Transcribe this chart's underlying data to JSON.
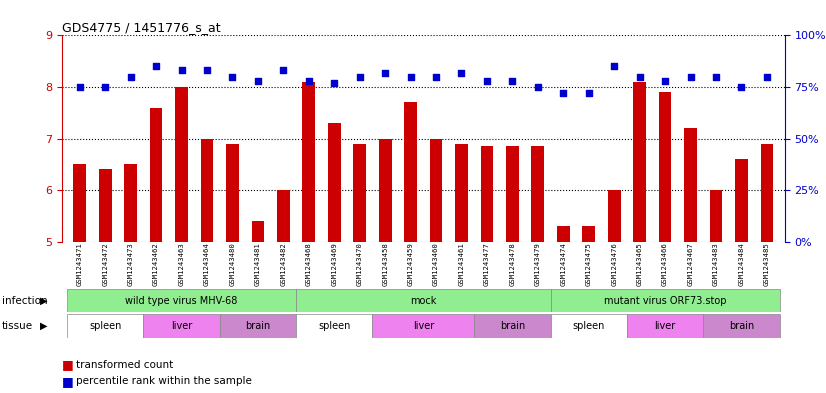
{
  "title": "GDS4775 / 1451776_s_at",
  "samples": [
    "GSM1243471",
    "GSM1243472",
    "GSM1243473",
    "GSM1243462",
    "GSM1243463",
    "GSM1243464",
    "GSM1243480",
    "GSM1243481",
    "GSM1243482",
    "GSM1243468",
    "GSM1243469",
    "GSM1243470",
    "GSM1243458",
    "GSM1243459",
    "GSM1243460",
    "GSM1243461",
    "GSM1243477",
    "GSM1243478",
    "GSM1243479",
    "GSM1243474",
    "GSM1243475",
    "GSM1243476",
    "GSM1243465",
    "GSM1243466",
    "GSM1243467",
    "GSM1243483",
    "GSM1243484",
    "GSM1243485"
  ],
  "bar_values": [
    6.5,
    6.4,
    6.5,
    7.6,
    8.0,
    7.0,
    6.9,
    5.4,
    6.0,
    8.1,
    7.3,
    6.9,
    7.0,
    7.7,
    7.0,
    6.9,
    6.85,
    6.85,
    6.85,
    5.3,
    5.3,
    6.0,
    8.1,
    7.9,
    7.2,
    6.0,
    6.6,
    6.9
  ],
  "dot_values": [
    75,
    75,
    80,
    85,
    83,
    83,
    80,
    78,
    83,
    78,
    77,
    80,
    82,
    80,
    80,
    82,
    78,
    78,
    75,
    72,
    72,
    85,
    80,
    78,
    80,
    80,
    75,
    80
  ],
  "ylim_left": [
    5,
    9
  ],
  "ylim_right": [
    0,
    100
  ],
  "yticks_left": [
    5,
    6,
    7,
    8,
    9
  ],
  "yticks_right": [
    0,
    25,
    50,
    75,
    100
  ],
  "bar_color": "#cc0000",
  "dot_color": "#0000cc",
  "bar_width": 0.5,
  "infection_groups": [
    {
      "label": "wild type virus MHV-68",
      "start": 0,
      "end": 8
    },
    {
      "label": "mock",
      "start": 9,
      "end": 18
    },
    {
      "label": "mutant virus ORF73.stop",
      "start": 19,
      "end": 27
    }
  ],
  "tissue_groups": [
    {
      "label": "spleen",
      "start": 0,
      "end": 2,
      "color": "#ffffff"
    },
    {
      "label": "liver",
      "start": 3,
      "end": 5,
      "color": "#ee82ee"
    },
    {
      "label": "brain",
      "start": 6,
      "end": 8,
      "color": "#cc88cc"
    },
    {
      "label": "spleen",
      "start": 9,
      "end": 11,
      "color": "#ffffff"
    },
    {
      "label": "liver",
      "start": 12,
      "end": 15,
      "color": "#ee82ee"
    },
    {
      "label": "brain",
      "start": 16,
      "end": 18,
      "color": "#cc88cc"
    },
    {
      "label": "spleen",
      "start": 19,
      "end": 21,
      "color": "#ffffff"
    },
    {
      "label": "liver",
      "start": 22,
      "end": 24,
      "color": "#ee82ee"
    },
    {
      "label": "brain",
      "start": 25,
      "end": 27,
      "color": "#cc88cc"
    }
  ],
  "infection_label": "infection",
  "tissue_label": "tissue",
  "infection_color": "#90ee90",
  "background_color": "#ffffff"
}
